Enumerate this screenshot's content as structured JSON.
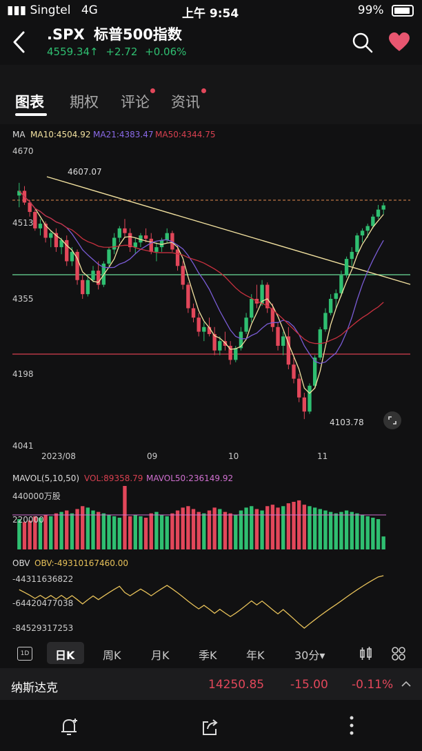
{
  "status": {
    "carrier": "Singtel",
    "network": "4G",
    "time": "上午 9:54",
    "battery": "99%"
  },
  "header": {
    "symbol": ".SPX",
    "name": "标普500指数",
    "price": "4559.34",
    "arrow": "↑",
    "change": "+2.72",
    "change_pct": "+0.06%"
  },
  "tabs": [
    {
      "label": "图表",
      "active": true,
      "dot": false
    },
    {
      "label": "期权",
      "active": false,
      "dot": false
    },
    {
      "label": "评论",
      "active": false,
      "dot": true
    },
    {
      "label": "资讯",
      "active": false,
      "dot": true
    }
  ],
  "ma_legend": {
    "title": "MA",
    "ma10": "MA10:4504.92",
    "ma21": "MA21:4383.47",
    "ma50": "MA50:4344.75"
  },
  "y_labels": [
    "4670",
    "4513",
    "4355",
    "4198",
    "4041"
  ],
  "x_labels": [
    "2023/08",
    "09",
    "10",
    "11"
  ],
  "annotations": {
    "high": "4607.07",
    "low": "4103.78"
  },
  "vol_legend": {
    "title": "MAVOL(5,10,50)",
    "vol": "VOL:89358.79",
    "mavol50": "MAVOL50:236149.92"
  },
  "vol_labels": [
    "440000万股",
    "220000"
  ],
  "obv_legend": {
    "title": "OBV",
    "obv": "OBV:-49310167460.00"
  },
  "obv_labels": [
    "-44311636822",
    "-64420477038",
    "-84529317253"
  ],
  "periods": [
    {
      "label": "1D",
      "icon": true
    },
    {
      "label": "日K",
      "active": true
    },
    {
      "label": "周K"
    },
    {
      "label": "月K"
    },
    {
      "label": "季K"
    },
    {
      "label": "年K"
    },
    {
      "label": "30分▾"
    }
  ],
  "index_ticker": {
    "name": "纳斯达克",
    "price": "14250.85",
    "change": "-15.00",
    "pct": "-0.11%"
  },
  "colors": {
    "up": "#2fbf71",
    "down": "#e2475a",
    "ma10": "#f3e2a0",
    "ma21": "#7a5cd6",
    "ma50": "#c8313f",
    "bg": "#111112"
  },
  "chart_data": {
    "type": "candlestick",
    "ylim": [
      4041,
      4670
    ],
    "ohlc": [
      [
        4580,
        4607,
        4555,
        4590
      ],
      [
        4590,
        4600,
        4560,
        4565
      ],
      [
        4565,
        4570,
        4535,
        4545
      ],
      [
        4545,
        4550,
        4505,
        4510
      ],
      [
        4510,
        4530,
        4495,
        4520
      ],
      [
        4520,
        4525,
        4480,
        4490
      ],
      [
        4490,
        4505,
        4470,
        4500
      ],
      [
        4500,
        4510,
        4460,
        4470
      ],
      [
        4470,
        4490,
        4455,
        4485
      ],
      [
        4485,
        4495,
        4430,
        4440
      ],
      [
        4440,
        4470,
        4430,
        4460
      ],
      [
        4460,
        4465,
        4390,
        4400
      ],
      [
        4400,
        4410,
        4360,
        4370
      ],
      [
        4370,
        4410,
        4365,
        4400
      ],
      [
        4400,
        4430,
        4395,
        4420
      ],
      [
        4420,
        4440,
        4380,
        4390
      ],
      [
        4390,
        4440,
        4385,
        4435
      ],
      [
        4435,
        4470,
        4430,
        4465
      ],
      [
        4465,
        4500,
        4455,
        4490
      ],
      [
        4490,
        4515,
        4480,
        4510
      ],
      [
        4510,
        4530,
        4490,
        4500
      ],
      [
        4500,
        4510,
        4460,
        4470
      ],
      [
        4470,
        4490,
        4455,
        4480
      ],
      [
        4480,
        4500,
        4470,
        4495
      ],
      [
        4495,
        4510,
        4480,
        4488
      ],
      [
        4488,
        4500,
        4455,
        4460
      ],
      [
        4460,
        4480,
        4440,
        4470
      ],
      [
        4470,
        4490,
        4460,
        4485
      ],
      [
        4485,
        4510,
        4480,
        4500
      ],
      [
        4500,
        4505,
        4460,
        4465
      ],
      [
        4465,
        4475,
        4420,
        4430
      ],
      [
        4430,
        4440,
        4380,
        4390
      ],
      [
        4390,
        4395,
        4330,
        4340
      ],
      [
        4340,
        4350,
        4310,
        4320
      ],
      [
        4320,
        4330,
        4280,
        4290
      ],
      [
        4290,
        4310,
        4270,
        4300
      ],
      [
        4300,
        4320,
        4280,
        4285
      ],
      [
        4285,
        4300,
        4240,
        4250
      ],
      [
        4250,
        4280,
        4240,
        4270
      ],
      [
        4270,
        4290,
        4250,
        4260
      ],
      [
        4260,
        4270,
        4220,
        4230
      ],
      [
        4230,
        4260,
        4225,
        4255
      ],
      [
        4255,
        4300,
        4250,
        4290
      ],
      [
        4290,
        4330,
        4285,
        4320
      ],
      [
        4320,
        4370,
        4310,
        4360
      ],
      [
        4360,
        4390,
        4340,
        4350
      ],
      [
        4350,
        4400,
        4345,
        4390
      ],
      [
        4390,
        4395,
        4330,
        4340
      ],
      [
        4340,
        4350,
        4290,
        4300
      ],
      [
        4300,
        4310,
        4250,
        4260
      ],
      [
        4260,
        4290,
        4240,
        4280
      ],
      [
        4280,
        4300,
        4210,
        4220
      ],
      [
        4220,
        4235,
        4180,
        4190
      ],
      [
        4190,
        4200,
        4140,
        4150
      ],
      [
        4150,
        4160,
        4104,
        4120
      ],
      [
        4120,
        4180,
        4115,
        4175
      ],
      [
        4175,
        4240,
        4170,
        4235
      ],
      [
        4235,
        4300,
        4230,
        4295
      ],
      [
        4295,
        4340,
        4290,
        4330
      ],
      [
        4330,
        4370,
        4325,
        4360
      ],
      [
        4360,
        4380,
        4340,
        4372
      ],
      [
        4372,
        4420,
        4365,
        4410
      ],
      [
        4410,
        4450,
        4405,
        4445
      ],
      [
        4445,
        4470,
        4430,
        4460
      ],
      [
        4460,
        4500,
        4455,
        4495
      ],
      [
        4495,
        4510,
        4480,
        4505
      ],
      [
        4505,
        4520,
        4490,
        4515
      ],
      [
        4515,
        4540,
        4510,
        4535
      ],
      [
        4535,
        4560,
        4530,
        4550
      ],
      [
        4550,
        4565,
        4540,
        4559
      ]
    ],
    "volume": [
      210,
      190,
      200,
      230,
      220,
      240,
      230,
      250,
      260,
      270,
      250,
      280,
      300,
      290,
      270,
      260,
      250,
      240,
      230,
      220,
      440,
      230,
      240,
      230,
      220,
      250,
      260,
      240,
      230,
      250,
      270,
      290,
      300,
      280,
      260,
      250,
      270,
      290,
      280,
      260,
      250,
      240,
      270,
      290,
      300,
      280,
      270,
      300,
      310,
      290,
      300,
      320,
      330,
      340,
      310,
      300,
      290,
      280,
      270,
      260,
      250,
      260,
      270,
      260,
      250,
      240,
      230,
      220,
      210,
      90
    ]
  }
}
